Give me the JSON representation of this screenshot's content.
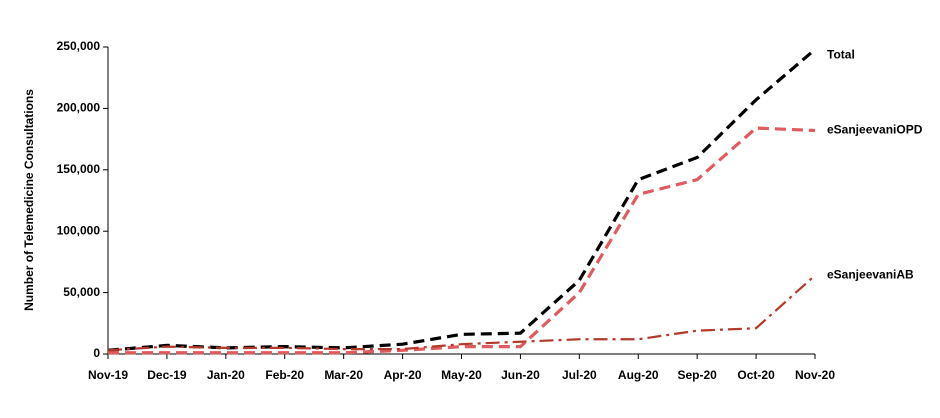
{
  "chart_data": {
    "type": "line",
    "y_label": "Number of Telemedicine Consultations",
    "categories": [
      "Nov-19",
      "Dec-19",
      "Jan-20",
      "Feb-20",
      "Mar-20",
      "Apr-20",
      "May-20",
      "Jun-20",
      "Jul-20",
      "Aug-20",
      "Sep-20",
      "Oct-20",
      "Nov-20"
    ],
    "series": [
      {
        "name": "Total",
        "color": "#000000",
        "dash": "dashed",
        "values": [
          3000,
          7000,
          5000,
          6000,
          5000,
          8000,
          16000,
          17000,
          60000,
          142000,
          160000,
          207000,
          248000
        ]
      },
      {
        "name": "eSanjeevaniOPD",
        "color": "#e05a5f",
        "dash": "dashed",
        "values": [
          1000,
          1000,
          1000,
          1000,
          1000,
          3000,
          6000,
          6000,
          50000,
          130000,
          142000,
          184000,
          182000
        ]
      },
      {
        "name": "eSanjeevaniAB",
        "color": "#b33a2b",
        "dash": "dashdot",
        "values": [
          3000,
          6000,
          5000,
          5000,
          4000,
          4000,
          8000,
          10000,
          12000,
          12000,
          19000,
          21000,
          64000
        ]
      }
    ],
    "ylim": [
      0,
      250000
    ],
    "yticks": [
      0,
      {
        "value": 50000,
        "label": "50,000"
      },
      {
        "value": 100000,
        "label": "100,000"
      },
      {
        "value": 150000,
        "label": "150,000"
      },
      {
        "value": 200000,
        "label": "200,000"
      },
      {
        "value": 250000,
        "label": "250,000"
      }
    ],
    "grid": false
  }
}
